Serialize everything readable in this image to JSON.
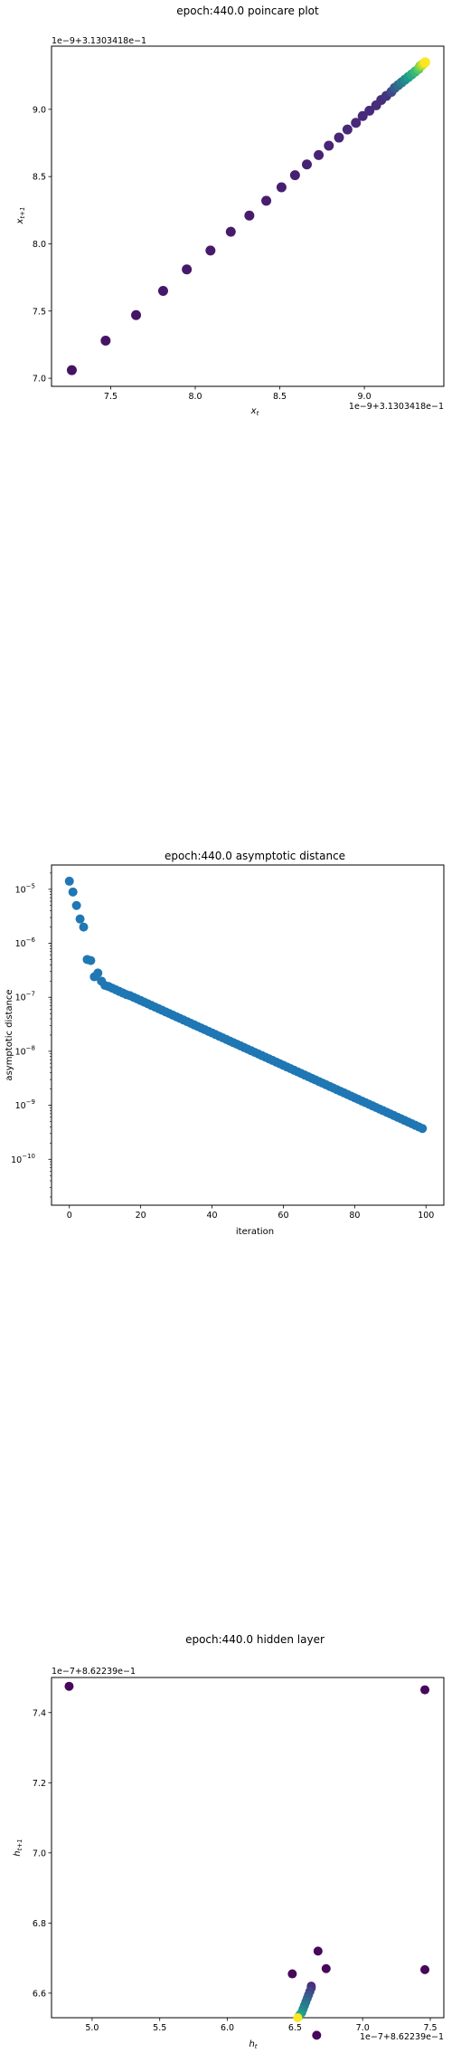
{
  "chart_data": [
    {
      "type": "scatter",
      "title": "epoch:440.0 poincare plot",
      "xlabel": "x_t",
      "ylabel": "x_{t+1}",
      "x_offset_text": "1e−9+3.1303418e−1",
      "y_offset_text": "1e−9+3.1303418e−1",
      "offset_unit": "1e-9",
      "xlim": [
        7.15,
        9.47
      ],
      "ylim": [
        6.94,
        9.47
      ],
      "xticks": [
        7.5,
        8.0,
        8.5,
        9.0
      ],
      "xtick_labels": [
        "7.5",
        "8.0",
        "8.5",
        "9.0"
      ],
      "yticks": [
        7.0,
        7.5,
        8.0,
        8.5,
        9.0
      ],
      "ytick_labels": [
        "7.0",
        "7.5",
        "8.0",
        "8.5",
        "9.0"
      ],
      "grid": false,
      "colormap": "viridis",
      "color_by": "iteration index",
      "x": [
        7.27,
        7.47,
        7.65,
        7.81,
        7.95,
        8.09,
        8.21,
        8.32,
        8.42,
        8.51,
        8.59,
        8.66,
        8.73,
        8.79,
        8.85,
        8.9,
        8.95,
        8.99,
        9.03,
        9.07,
        9.1,
        9.13,
        9.16,
        9.18,
        9.2,
        9.22,
        9.24,
        9.26,
        9.28,
        9.3,
        9.32,
        9.33,
        9.34,
        9.35,
        9.36
      ],
      "y": [
        7.06,
        7.28,
        7.47,
        7.65,
        7.81,
        7.95,
        8.09,
        8.21,
        8.32,
        8.42,
        8.51,
        8.59,
        8.66,
        8.73,
        8.79,
        8.85,
        8.9,
        8.95,
        8.99,
        9.03,
        9.07,
        9.1,
        9.13,
        9.16,
        9.18,
        9.2,
        9.22,
        9.24,
        9.26,
        9.28,
        9.3,
        9.32,
        9.33,
        9.34,
        9.35
      ]
    },
    {
      "type": "scatter",
      "title": "epoch:440.0 asymptotic distance",
      "xlabel": "iteration",
      "ylabel": "asymptotic distance",
      "yscale": "log",
      "xlim": [
        -5,
        105
      ],
      "ylim_log10": [
        -10.85,
        -4.55
      ],
      "xticks": [
        0,
        20,
        40,
        60,
        80,
        100
      ],
      "xtick_labels": [
        "0",
        "20",
        "40",
        "60",
        "80",
        "100"
      ],
      "ytick_base": "10",
      "yticks_exp": [
        -10,
        -9,
        -8,
        -7,
        -6,
        -5
      ],
      "ytick_exp_labels": [
        "−10",
        "−9",
        "−8",
        "−7",
        "−6",
        "−5"
      ],
      "grid": false,
      "color": "#1f77b4",
      "x": [
        0,
        1,
        2,
        3,
        4,
        5,
        6,
        7,
        8,
        9,
        10,
        11,
        12,
        13,
        14,
        15,
        16,
        17,
        18,
        19,
        20,
        21,
        22,
        23,
        24,
        25,
        26,
        27,
        28,
        29,
        30,
        31,
        32,
        33,
        34,
        35,
        36,
        37,
        38,
        39,
        40,
        41,
        42,
        43,
        44,
        45,
        46,
        47,
        48,
        49,
        50,
        51,
        52,
        53,
        54,
        55,
        56,
        57,
        58,
        59,
        60,
        61,
        62,
        63,
        64,
        65,
        66,
        67,
        68,
        69,
        70,
        71,
        72,
        73,
        74,
        75,
        76,
        77,
        78,
        79,
        80,
        81,
        82,
        83,
        84,
        85,
        86,
        87,
        88,
        89,
        90,
        91,
        92,
        93,
        94,
        95,
        96,
        97,
        98,
        99
      ],
      "y_log10": [
        -4.85,
        -5.05,
        -5.3,
        -5.55,
        -5.7,
        -6.3,
        -6.32,
        -6.62,
        -6.55,
        -6.7,
        -6.78,
        -6.8,
        -6.83,
        -6.86,
        -6.89,
        -6.92,
        -6.95,
        -6.97,
        -7.0,
        -7.03,
        -7.06,
        -7.09,
        -7.12,
        -7.15,
        -7.18,
        -7.21,
        -7.24,
        -7.27,
        -7.3,
        -7.33,
        -7.36,
        -7.39,
        -7.42,
        -7.45,
        -7.48,
        -7.51,
        -7.54,
        -7.57,
        -7.6,
        -7.63,
        -7.66,
        -7.69,
        -7.72,
        -7.75,
        -7.78,
        -7.81,
        -7.84,
        -7.87,
        -7.9,
        -7.93,
        -7.96,
        -7.99,
        -8.02,
        -8.05,
        -8.08,
        -8.11,
        -8.14,
        -8.17,
        -8.2,
        -8.23,
        -8.26,
        -8.29,
        -8.32,
        -8.35,
        -8.38,
        -8.41,
        -8.44,
        -8.47,
        -8.5,
        -8.53,
        -8.56,
        -8.59,
        -8.62,
        -8.65,
        -8.68,
        -8.71,
        -8.74,
        -8.77,
        -8.8,
        -8.83,
        -8.86,
        -8.89,
        -8.92,
        -8.95,
        -8.98,
        -9.01,
        -9.04,
        -9.07,
        -9.1,
        -9.13,
        -9.16,
        -9.19,
        -9.22,
        -9.25,
        -9.28,
        -9.31,
        -9.34,
        -9.37,
        -9.4,
        -9.43
      ]
    },
    {
      "type": "scatter",
      "title": "epoch:440.0 hidden layer",
      "xlabel": "h_t",
      "ylabel": "h_{t+1}",
      "x_offset_text": "1e−7+8.62239e−1",
      "y_offset_text": "1e−7+8.62239e−1",
      "offset_unit": "1e-7",
      "xlim": [
        4.7,
        7.6
      ],
      "ylim": [
        6.53,
        7.5
      ],
      "xticks": [
        5.0,
        5.5,
        6.0,
        6.5,
        7.0,
        7.5
      ],
      "xtick_labels": [
        "5.0",
        "5.5",
        "6.0",
        "6.5",
        "7.0",
        "7.5"
      ],
      "yticks": [
        6.6,
        6.8,
        7.0,
        7.2,
        7.4
      ],
      "ytick_labels": [
        "6.6",
        "6.8",
        "7.0",
        "7.2",
        "7.4"
      ],
      "grid": false,
      "colormap": "viridis",
      "color_by": "iteration index",
      "x": [
        4.83,
        7.46,
        7.46,
        6.66,
        6.67,
        6.73,
        6.48,
        6.62,
        6.62,
        6.61,
        6.6,
        6.59,
        6.58,
        6.57,
        6.56,
        6.55,
        6.54,
        6.53,
        6.52
      ],
      "y": [
        7.475,
        7.465,
        6.667,
        6.48,
        6.72,
        6.67,
        6.655,
        6.62,
        6.615,
        6.605,
        6.595,
        6.585,
        6.575,
        6.565,
        6.555,
        6.545,
        6.54,
        6.535,
        6.53
      ]
    }
  ]
}
